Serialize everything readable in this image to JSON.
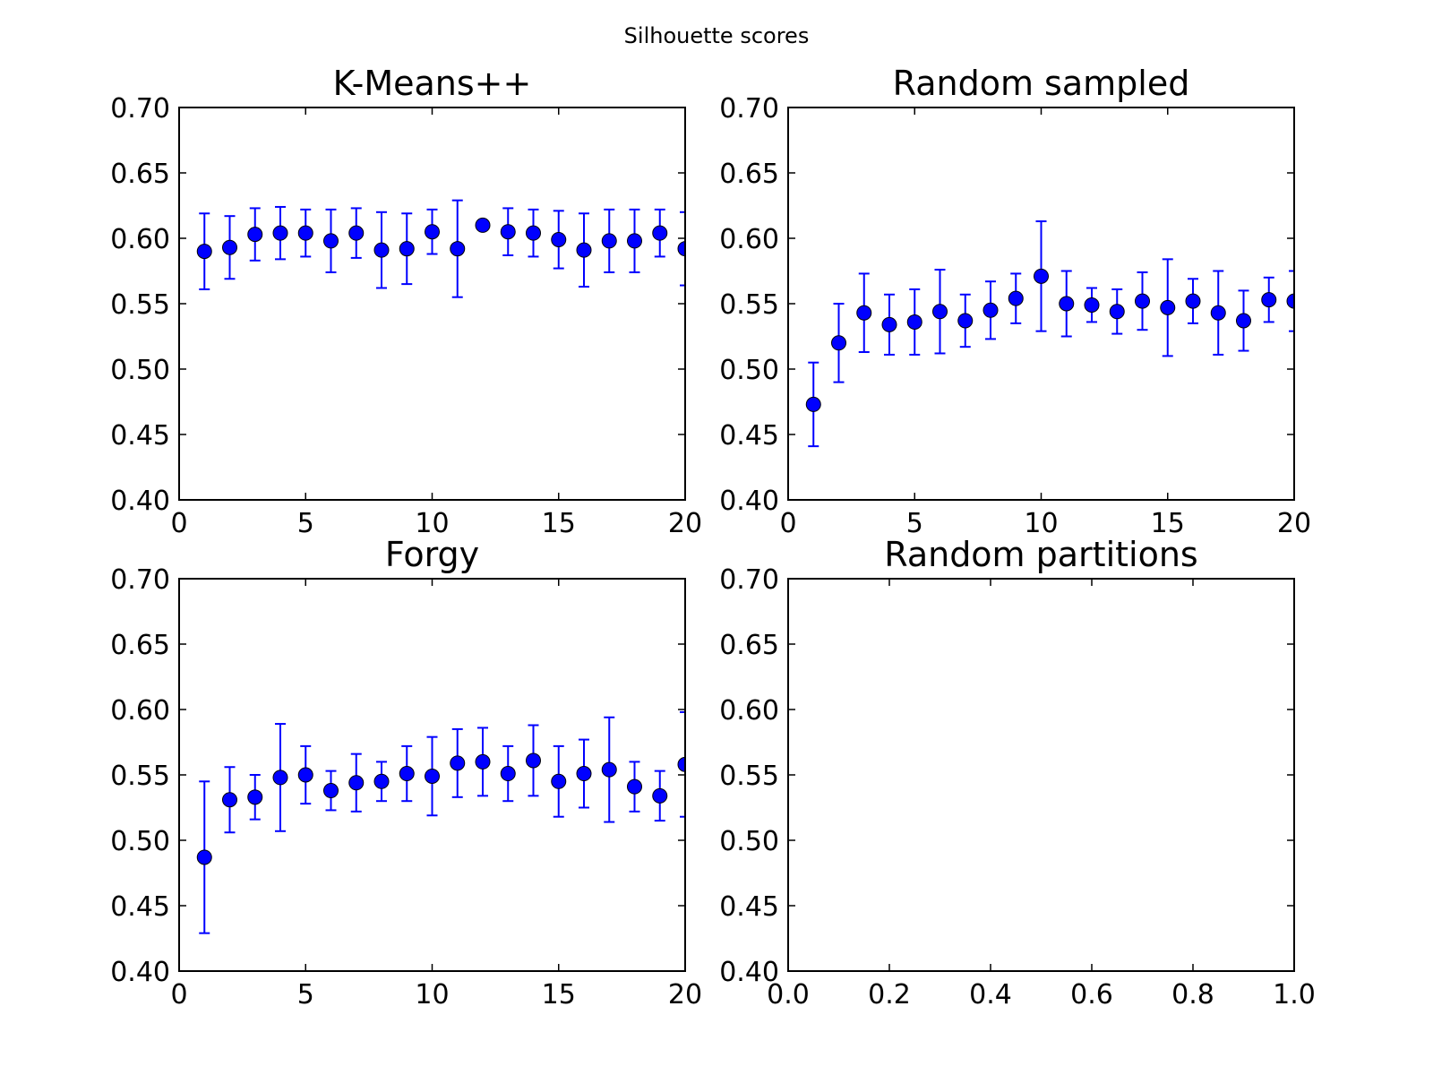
{
  "figure": {
    "suptitle": "Silhouette scores"
  },
  "chart_data": [
    {
      "type": "scatter",
      "title": "K-Means++",
      "xlabel": "",
      "ylabel": "",
      "xlim": [
        0,
        20
      ],
      "ylim": [
        0.4,
        0.7
      ],
      "xticks": [
        "0",
        "5",
        "10",
        "15",
        "20"
      ],
      "yticks": [
        "0.40",
        "0.45",
        "0.50",
        "0.55",
        "0.60",
        "0.65",
        "0.70"
      ],
      "grid": false,
      "marker_color": "#0000ff",
      "error_bars": true,
      "x": [
        1,
        2,
        3,
        4,
        5,
        6,
        7,
        8,
        9,
        10,
        11,
        12,
        13,
        14,
        15,
        16,
        17,
        18,
        19,
        20
      ],
      "values": [
        0.59,
        0.593,
        0.603,
        0.604,
        0.604,
        0.598,
        0.604,
        0.591,
        0.592,
        0.605,
        0.592,
        0.61,
        0.605,
        0.604,
        0.599,
        0.591,
        0.598,
        0.598,
        0.604,
        0.592
      ],
      "errors": [
        0.029,
        0.024,
        0.02,
        0.02,
        0.018,
        0.024,
        0.019,
        0.029,
        0.027,
        0.017,
        0.037,
        0.0,
        0.018,
        0.018,
        0.022,
        0.028,
        0.024,
        0.024,
        0.018,
        0.028
      ]
    },
    {
      "type": "scatter",
      "title": "Random sampled",
      "xlabel": "",
      "ylabel": "",
      "xlim": [
        0,
        20
      ],
      "ylim": [
        0.4,
        0.7
      ],
      "xticks": [
        "0",
        "5",
        "10",
        "15",
        "20"
      ],
      "yticks": [
        "0.40",
        "0.45",
        "0.50",
        "0.55",
        "0.60",
        "0.65",
        "0.70"
      ],
      "grid": false,
      "marker_color": "#0000ff",
      "error_bars": true,
      "x": [
        1,
        2,
        3,
        4,
        5,
        6,
        7,
        8,
        9,
        10,
        11,
        12,
        13,
        14,
        15,
        16,
        17,
        18,
        19,
        20
      ],
      "values": [
        0.473,
        0.52,
        0.543,
        0.534,
        0.536,
        0.544,
        0.537,
        0.545,
        0.554,
        0.571,
        0.55,
        0.549,
        0.544,
        0.552,
        0.547,
        0.552,
        0.543,
        0.537,
        0.553,
        0.552
      ],
      "errors": [
        0.032,
        0.03,
        0.03,
        0.023,
        0.025,
        0.032,
        0.02,
        0.022,
        0.019,
        0.042,
        0.025,
        0.013,
        0.017,
        0.022,
        0.037,
        0.017,
        0.032,
        0.023,
        0.017,
        0.023
      ]
    },
    {
      "type": "scatter",
      "title": "Forgy",
      "xlabel": "",
      "ylabel": "",
      "xlim": [
        0,
        20
      ],
      "ylim": [
        0.4,
        0.7
      ],
      "xticks": [
        "0",
        "5",
        "10",
        "15",
        "20"
      ],
      "yticks": [
        "0.40",
        "0.45",
        "0.50",
        "0.55",
        "0.60",
        "0.65",
        "0.70"
      ],
      "grid": false,
      "marker_color": "#0000ff",
      "error_bars": true,
      "x": [
        1,
        2,
        3,
        4,
        5,
        6,
        7,
        8,
        9,
        10,
        11,
        12,
        13,
        14,
        15,
        16,
        17,
        18,
        19,
        20
      ],
      "values": [
        0.487,
        0.531,
        0.533,
        0.548,
        0.55,
        0.538,
        0.544,
        0.545,
        0.551,
        0.549,
        0.559,
        0.56,
        0.551,
        0.561,
        0.545,
        0.551,
        0.554,
        0.541,
        0.534,
        0.558
      ],
      "errors": [
        0.058,
        0.025,
        0.017,
        0.041,
        0.022,
        0.015,
        0.022,
        0.015,
        0.021,
        0.03,
        0.026,
        0.026,
        0.021,
        0.027,
        0.027,
        0.026,
        0.04,
        0.019,
        0.019,
        0.04
      ]
    },
    {
      "type": "scatter",
      "title": "Random partitions",
      "xlabel": "",
      "ylabel": "",
      "xlim": [
        0,
        1
      ],
      "ylim": [
        0.4,
        0.7
      ],
      "xticks": [
        "0.0",
        "0.2",
        "0.4",
        "0.6",
        "0.8",
        "1.0"
      ],
      "yticks": [
        "0.40",
        "0.45",
        "0.50",
        "0.55",
        "0.60",
        "0.65",
        "0.70"
      ],
      "grid": false,
      "marker_color": "#0000ff",
      "error_bars": true,
      "x": [],
      "values": [],
      "errors": []
    }
  ]
}
